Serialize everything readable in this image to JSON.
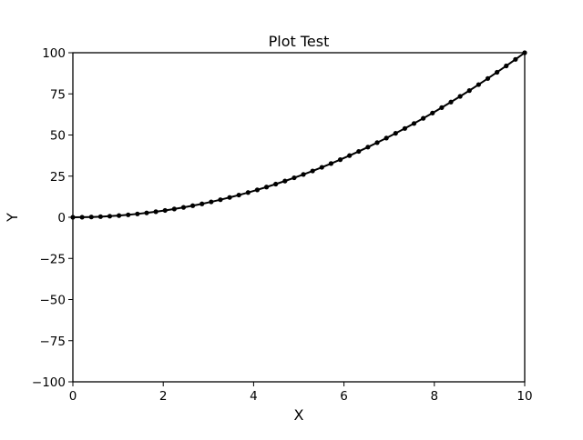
{
  "chart_data": {
    "type": "line",
    "title": "Plot Test",
    "xlabel": "X",
    "ylabel": "Y",
    "xlim": [
      0,
      10
    ],
    "ylim": [
      -100,
      100
    ],
    "xticks": [
      0,
      2,
      4,
      6,
      8,
      10
    ],
    "yticks": [
      -100,
      -75,
      -50,
      -25,
      0,
      25,
      50,
      75,
      100
    ],
    "xtick_labels": [
      "0",
      "2",
      "4",
      "6",
      "8",
      "10"
    ],
    "ytick_labels": [
      "−100",
      "−75",
      "−50",
      "−25",
      "0",
      "25",
      "50",
      "75",
      "100"
    ],
    "grid": false,
    "series": [
      {
        "color": "#000000",
        "marker": "circle",
        "x": [
          0,
          0.2041,
          0.4082,
          0.6122,
          0.8163,
          1.0204,
          1.2245,
          1.4286,
          1.6327,
          1.8367,
          2.0408,
          2.2449,
          2.449,
          2.6531,
          2.8571,
          3.0612,
          3.2653,
          3.4694,
          3.6735,
          3.8776,
          4.0816,
          4.2857,
          4.4898,
          4.6939,
          4.898,
          5.102,
          5.3061,
          5.5102,
          5.7143,
          5.9184,
          6.1224,
          6.3265,
          6.5306,
          6.7347,
          6.9388,
          7.1429,
          7.3469,
          7.551,
          7.7551,
          7.9592,
          8.1633,
          8.3673,
          8.5714,
          8.7755,
          8.9796,
          9.1837,
          9.3878,
          9.5918,
          9.7959,
          10
        ],
        "y": [
          0,
          0.04,
          0.17,
          0.37,
          0.67,
          1.04,
          1.5,
          2.04,
          2.67,
          3.37,
          4.16,
          5.04,
          6.0,
          7.04,
          8.16,
          9.37,
          10.66,
          12.04,
          13.49,
          15.04,
          16.66,
          18.37,
          20.16,
          22.03,
          23.99,
          26.03,
          28.15,
          30.36,
          32.65,
          35.03,
          37.48,
          40.03,
          42.65,
          45.36,
          48.15,
          51.02,
          53.98,
          57.02,
          60.14,
          63.35,
          66.64,
          70.01,
          73.47,
          77.01,
          80.63,
          84.34,
          88.13,
          92.0,
          95.96,
          100
        ]
      }
    ]
  }
}
